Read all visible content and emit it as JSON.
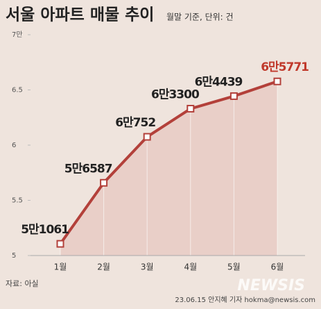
{
  "chart_data": {
    "type": "line",
    "title": "서울 아파트 매물 추이",
    "subtitle": "월말 기준, 단위: 건",
    "categories": [
      "1월",
      "2월",
      "3월",
      "4월",
      "5월",
      "6월"
    ],
    "series": [
      {
        "name": "매물",
        "color": "#b3403a",
        "values": [
          5.1061,
          5.6587,
          6.0752,
          6.33,
          6.4439,
          6.5771
        ],
        "value_labels": [
          "5만1061",
          "5만6587",
          "6만752",
          "6만3300",
          "6만4439",
          "6만5771"
        ]
      }
    ],
    "highlight_label_color": "#c0392b",
    "area_color": "#e9cfc8",
    "ylim": [
      5,
      7
    ],
    "yticks": [
      5,
      5.5,
      6,
      6.5,
      {
        "value": 7,
        "label": "7만"
      }
    ],
    "source": "자료: 아실",
    "credit": "23.06.15 안지혜 기자 hokma@newsis.com",
    "watermark": "NEWSIS"
  }
}
